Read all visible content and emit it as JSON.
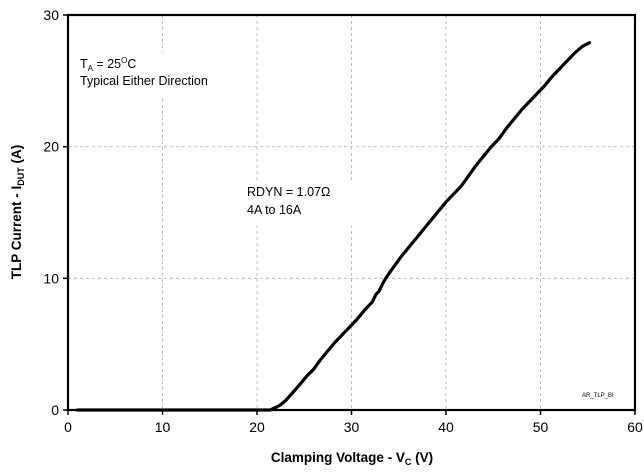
{
  "chart_data": {
    "type": "line",
    "xlabel": {
      "text": "Clamping Voltage - V",
      "sub": "C",
      "suffix": " (V)"
    },
    "ylabel": {
      "text": "TLP Current - I",
      "sub": "DUT",
      "suffix": " (A)"
    },
    "xlim": [
      0,
      60
    ],
    "ylim": [
      0,
      30
    ],
    "x_ticks": [
      0,
      10,
      20,
      30,
      40,
      50,
      60
    ],
    "y_ticks": [
      0,
      10,
      20,
      30
    ],
    "grid": {
      "x_major": true,
      "y_major": true,
      "style": "dashed"
    },
    "series": [
      {
        "points": [
          [
            1,
            0
          ],
          [
            10,
            0
          ],
          [
            20,
            0
          ],
          [
            21.4,
            0
          ],
          [
            22,
            0.2
          ],
          [
            22.5,
            0.4
          ],
          [
            23,
            0.7
          ],
          [
            23.5,
            1.1
          ],
          [
            24,
            1.5
          ],
          [
            24.6,
            2.0
          ],
          [
            25.3,
            2.6
          ],
          [
            26,
            3.1
          ],
          [
            26.7,
            3.8
          ],
          [
            27.5,
            4.5
          ],
          [
            28.2,
            5.1
          ],
          [
            29,
            5.7
          ],
          [
            29.8,
            6.3
          ],
          [
            30.6,
            6.9
          ],
          [
            31.4,
            7.6
          ],
          [
            32.2,
            8.2
          ],
          [
            32.6,
            8.8
          ],
          [
            32.9,
            9.0
          ],
          [
            33.3,
            9.6
          ],
          [
            33.8,
            10.2
          ],
          [
            34.4,
            10.8
          ],
          [
            35.2,
            11.6
          ],
          [
            36,
            12.3
          ],
          [
            36.8,
            13.0
          ],
          [
            37.6,
            13.7
          ],
          [
            38.4,
            14.4
          ],
          [
            39.2,
            15.1
          ],
          [
            40,
            15.8
          ],
          [
            40.8,
            16.4
          ],
          [
            41.6,
            17.0
          ],
          [
            42.4,
            17.8
          ],
          [
            43.2,
            18.6
          ],
          [
            44,
            19.3
          ],
          [
            44.8,
            20.0
          ],
          [
            45.6,
            20.6
          ],
          [
            46.4,
            21.4
          ],
          [
            47.2,
            22.1
          ],
          [
            48,
            22.8
          ],
          [
            48.8,
            23.4
          ],
          [
            49.6,
            24.0
          ],
          [
            50.4,
            24.6
          ],
          [
            51.2,
            25.3
          ],
          [
            52,
            25.9
          ],
          [
            52.8,
            26.5
          ],
          [
            53.6,
            27.1
          ],
          [
            54.4,
            27.6
          ],
          [
            55.2,
            27.9
          ]
        ]
      }
    ],
    "annotations": [
      {
        "id": "conditions",
        "lines": [
          "T_A = 25°C",
          "Typical Either Direction"
        ]
      },
      {
        "id": "rdyn",
        "lines": [
          "RDYN = 1.07Ω",
          "4A to 16A"
        ]
      }
    ],
    "corner_tag": "AR_TLP_BI"
  },
  "colors": {
    "line": "#000000",
    "grid": "#bfbfbf",
    "axis": "#000000"
  }
}
